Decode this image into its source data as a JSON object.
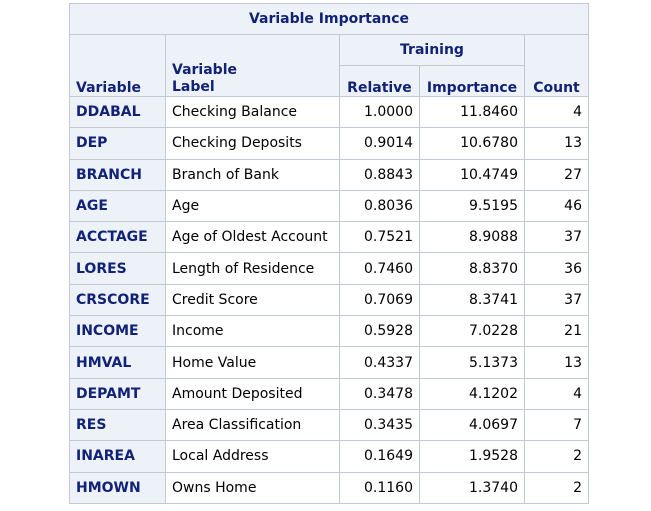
{
  "table": {
    "title": "Variable Importance",
    "headers": {
      "variable": "Variable",
      "label_line1": "Variable",
      "label_line2": "Label",
      "training": "Training",
      "relative": "Relative",
      "importance": "Importance",
      "count": "Count"
    },
    "rows": [
      {
        "variable": "DDABAL",
        "label": "Checking Balance",
        "relative": "1.0000",
        "importance": "11.8460",
        "count": "4"
      },
      {
        "variable": "DEP",
        "label": "Checking Deposits",
        "relative": "0.9014",
        "importance": "10.6780",
        "count": "13"
      },
      {
        "variable": "BRANCH",
        "label": "Branch of Bank",
        "relative": "0.8843",
        "importance": "10.4749",
        "count": "27"
      },
      {
        "variable": "AGE",
        "label": "Age",
        "relative": "0.8036",
        "importance": "9.5195",
        "count": "46"
      },
      {
        "variable": "ACCTAGE",
        "label": "Age of Oldest Account",
        "relative": "0.7521",
        "importance": "8.9088",
        "count": "37"
      },
      {
        "variable": "LORES",
        "label": "Length of Residence",
        "relative": "0.7460",
        "importance": "8.8370",
        "count": "36"
      },
      {
        "variable": "CRSCORE",
        "label": "Credit Score",
        "relative": "0.7069",
        "importance": "8.3741",
        "count": "37"
      },
      {
        "variable": "INCOME",
        "label": "Income",
        "relative": "0.5928",
        "importance": "7.0228",
        "count": "21"
      },
      {
        "variable": "HMVAL",
        "label": "Home Value",
        "relative": "0.4337",
        "importance": "5.1373",
        "count": "13"
      },
      {
        "variable": "DEPAMT",
        "label": "Amount Deposited",
        "relative": "0.3478",
        "importance": "4.1202",
        "count": "4"
      },
      {
        "variable": "RES",
        "label": "Area Classification",
        "relative": "0.3435",
        "importance": "4.0697",
        "count": "7"
      },
      {
        "variable": "INAREA",
        "label": "Local Address",
        "relative": "0.1649",
        "importance": "1.9528",
        "count": "2"
      },
      {
        "variable": "HMOWN",
        "label": "Owns Home",
        "relative": "0.1160",
        "importance": "1.3740",
        "count": "2"
      }
    ]
  }
}
